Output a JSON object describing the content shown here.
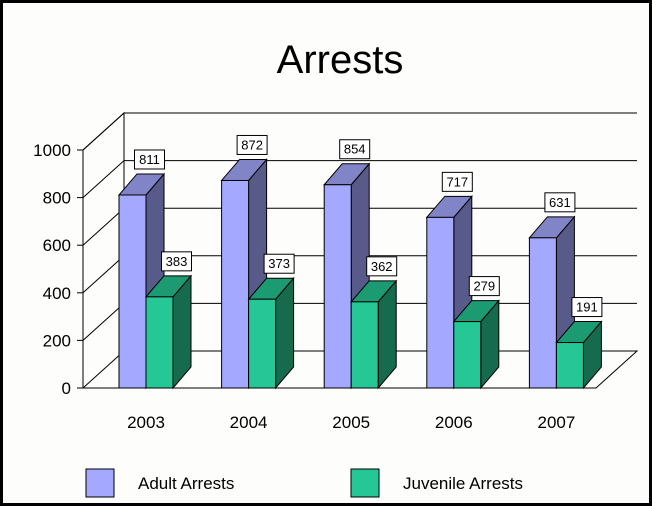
{
  "chart_data": {
    "type": "bar",
    "title": "Arrests",
    "categories": [
      "2003",
      "2004",
      "2005",
      "2006",
      "2007"
    ],
    "series": [
      {
        "name": "Adult Arrests",
        "values": [
          811,
          872,
          854,
          717,
          631
        ],
        "color": "#a5a8ff",
        "side_color": "#585a8a",
        "top_color": "#8284c8"
      },
      {
        "name": "Juvenile Arrests",
        "values": [
          383,
          373,
          362,
          279,
          191
        ],
        "color": "#25c796",
        "side_color": "#166a4e",
        "top_color": "#1c9a72"
      }
    ],
    "data_labels": {
      "Adult Arrests": [
        "811",
        "872",
        "854",
        "717",
        "631"
      ],
      "Juvenile Arrests": [
        "383",
        "373",
        "362",
        "279",
        "191"
      ]
    },
    "y_ticks": [
      "0",
      "200",
      "400",
      "600",
      "800",
      "1000"
    ],
    "ylim": [
      0,
      1000
    ],
    "three_d": true,
    "grid": true,
    "legend_position": "bottom"
  }
}
